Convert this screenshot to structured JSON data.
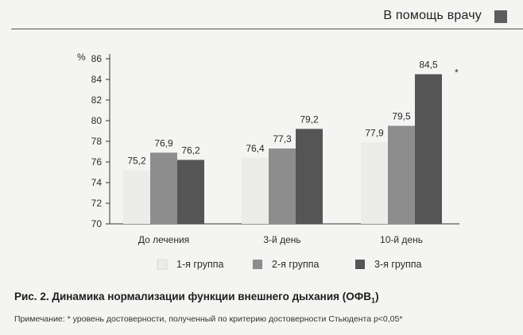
{
  "header": {
    "title": "В помощь врачу",
    "accent_color": "#5d5d5d"
  },
  "caption": {
    "text": "Рис. 2. Динамика нормализации функции внешнего дыхания (ОФВ",
    "subscript": "1",
    "closing": ")"
  },
  "note": "Примечание: * уровень достоверности, полученный по критерию достоверности Стьюдента p<0,05*",
  "chart_data": {
    "type": "bar",
    "categories": [
      "До лечения",
      "3-й день",
      "10-й день"
    ],
    "series": [
      {
        "name": "1-я группа",
        "values": [
          75.2,
          76.4,
          77.9
        ],
        "color": "#ececeb",
        "labels": [
          "75,2",
          "76,4",
          "77,9"
        ]
      },
      {
        "name": "2-я группа",
        "values": [
          76.9,
          77.3,
          79.5
        ],
        "color": "#8d8d8d",
        "labels": [
          "76,9",
          "77,3",
          "79,5"
        ]
      },
      {
        "name": "3-я группа",
        "values": [
          76.2,
          79.2,
          84.5
        ],
        "color": "#555555",
        "labels": [
          "76,2",
          "79,2",
          "84,5"
        ]
      }
    ],
    "ylabel": "%",
    "ylim": [
      70,
      86
    ],
    "yticks": [
      70,
      72,
      74,
      76,
      78,
      80,
      82,
      84,
      86
    ],
    "grid": false,
    "legend_position": "bottom",
    "annotations": [
      {
        "text": "*",
        "category": "10-й день",
        "series": "3-я группа"
      }
    ]
  }
}
